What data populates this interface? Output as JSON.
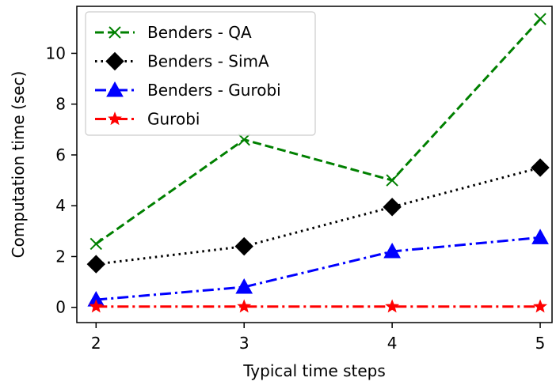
{
  "chart_data": {
    "type": "line",
    "xlabel": "Typical time steps",
    "ylabel": "Computation time (sec)",
    "x": [
      2,
      3,
      4,
      5
    ],
    "xlim": [
      1.87,
      5.08
    ],
    "ylim": [
      -0.6,
      11.85
    ],
    "xticks": [
      2,
      3,
      4,
      5
    ],
    "yticks": [
      0,
      2,
      4,
      6,
      8,
      10
    ],
    "xtick_labels": [
      "2",
      "3",
      "4",
      "5"
    ],
    "ytick_labels": [
      "0",
      "2",
      "4",
      "6",
      "8",
      "10"
    ],
    "grid": false,
    "legend_position": "top-left",
    "series": [
      {
        "name": "Benders - QA",
        "values": [
          2.5,
          6.6,
          5.0,
          11.35
        ],
        "color": "#008000",
        "linestyle": "dashed",
        "marker": "x"
      },
      {
        "name": "Benders - SimA",
        "values": [
          1.7,
          2.4,
          3.95,
          5.5
        ],
        "color": "#000000",
        "linestyle": "dotted",
        "marker": "diamond"
      },
      {
        "name": "Benders - Gurobi",
        "values": [
          0.3,
          0.8,
          2.2,
          2.75
        ],
        "color": "#0000ff",
        "linestyle": "dashdot",
        "marker": "triangle"
      },
      {
        "name": "Gurobi",
        "values": [
          0.03,
          0.03,
          0.03,
          0.03
        ],
        "color": "#ff0000",
        "linestyle": "dashdot",
        "marker": "star"
      }
    ]
  }
}
